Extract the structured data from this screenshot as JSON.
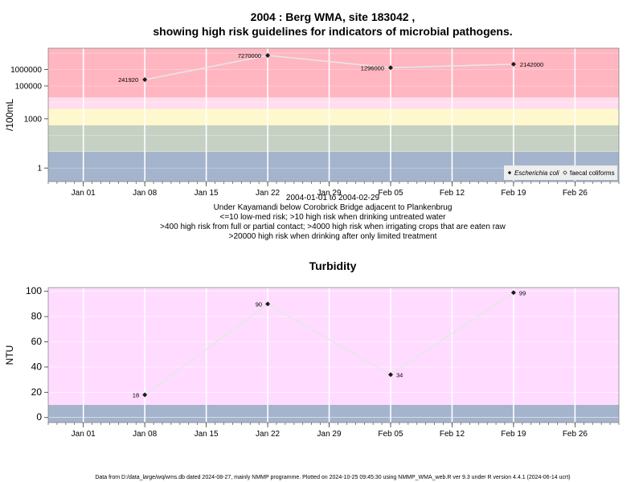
{
  "title_line1": "2004 : Berg WMA, site 183042 ,",
  "title_line2": "showing high risk guidelines for indicators of microbial pathogens.",
  "captions": [
    "2004-01-01 to 2004-02-29",
    "Under Kayamandi below Corobrick Bridge adjacent to Plankenbrug",
    "<=10 low-med risk; >10 high risk when drinking untreated water",
    ">400 high risk from full or partial contact; >4000 high risk when irrigating crops that are eaten raw",
    ">20000 high risk when drinking after only limited treatment"
  ],
  "footer": "Data from D:/data_large/wq/wms.db dated 2024-08-27, mainly NMMP programme. Plotted on 2024-10-25 09:45:30 using NMMP_WMA_web.R ver 9.3 under R version 4.4.1 (2024-06-14 ucrt)",
  "colors": {
    "ecoli": "#ffb6c1",
    "ecoli_light": "#ffddee",
    "yellow": "#fff8cc",
    "sage": "#c6d1c4",
    "blue": "#a4b4cc",
    "pink": "#ffdcff",
    "line": "#e6e6e6",
    "point": "#1a1a1a"
  },
  "chart_data": [
    {
      "type": "line",
      "title": "",
      "xlabel": "",
      "ylabel": "/100mL",
      "y_scale": "log",
      "ylim": [
        0.15,
        20000000
      ],
      "x_range": [
        "2003-12-28",
        "2004-03-02"
      ],
      "x_tick_labels": [
        "Jan 01",
        "Jan 08",
        "Jan 15",
        "Jan 22",
        "Jan 29",
        "Feb 05",
        "Feb 12",
        "Feb 19",
        "Feb 26"
      ],
      "x_tick_dates": [
        "2004-01-01",
        "2004-01-08",
        "2004-01-15",
        "2004-01-22",
        "2004-01-29",
        "2004-02-05",
        "2004-02-12",
        "2004-02-19",
        "2004-02-26"
      ],
      "y_tick_labels": [
        "1",
        "1000",
        "100000",
        "1000000"
      ],
      "y_tick_values": [
        1,
        1000,
        100000,
        1000000
      ],
      "bands": [
        {
          "from": 0.15,
          "to": 10,
          "color": "blue"
        },
        {
          "from": 10,
          "to": 400,
          "color": "sage"
        },
        {
          "from": 400,
          "to": 4000,
          "color": "yellow"
        },
        {
          "from": 4000,
          "to": 20000,
          "color": "ecoli_light"
        },
        {
          "from": 20000,
          "to": 20000000,
          "color": "ecoli"
        }
      ],
      "legend_position": "bottom-right",
      "series": [
        {
          "name": "Escherichia coli",
          "dates": [
            "2004-01-08",
            "2004-01-22",
            "2004-02-05",
            "2004-02-19"
          ],
          "values": [
            241920,
            7270000,
            1296000,
            2142000
          ],
          "labels": [
            "241920",
            "7270000",
            "1296000",
            "2142000"
          ]
        },
        {
          "name": "faecal coliforms",
          "dates": [],
          "values": [],
          "labels": []
        }
      ],
      "grid": true
    },
    {
      "type": "line",
      "title": "Turbidity",
      "xlabel": "",
      "ylabel": "NTU",
      "y_scale": "linear",
      "ylim": [
        -4,
        103
      ],
      "x_range": [
        "2003-12-28",
        "2004-03-02"
      ],
      "x_tick_labels": [
        "Jan 01",
        "Jan 08",
        "Jan 15",
        "Jan 22",
        "Jan 29",
        "Feb 05",
        "Feb 12",
        "Feb 19",
        "Feb 26"
      ],
      "x_tick_dates": [
        "2004-01-01",
        "2004-01-08",
        "2004-01-15",
        "2004-01-22",
        "2004-01-29",
        "2004-02-05",
        "2004-02-12",
        "2004-02-19",
        "2004-02-26"
      ],
      "y_tick_labels": [
        "0",
        "20",
        "40",
        "60",
        "80",
        "100"
      ],
      "y_tick_values": [
        0,
        20,
        40,
        60,
        80,
        100
      ],
      "bands": [
        {
          "from": -4,
          "to": 10,
          "color": "blue"
        },
        {
          "from": 10,
          "to": 103,
          "color": "pink"
        }
      ],
      "series": [
        {
          "name": "",
          "dates": [
            "2004-01-08",
            "2004-01-22",
            "2004-02-05",
            "2004-02-19"
          ],
          "values": [
            18,
            90,
            34,
            99
          ],
          "labels": [
            "18",
            "90",
            "34",
            "99"
          ]
        }
      ],
      "grid": true
    }
  ]
}
